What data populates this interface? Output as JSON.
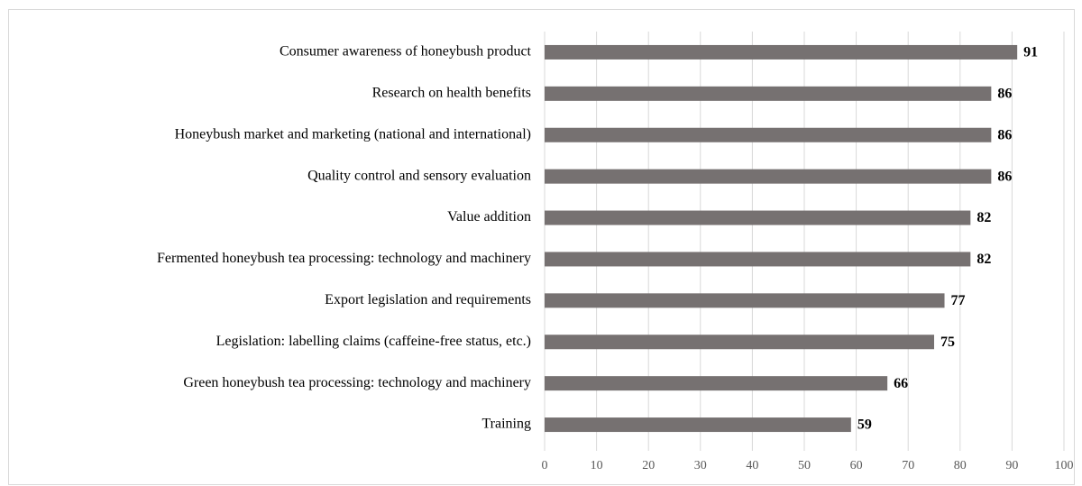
{
  "chart_data": {
    "type": "bar",
    "orientation": "horizontal",
    "categories": [
      "Consumer awareness of honeybush product",
      "Research on health benefits",
      "Honeybush market and marketing (national and international)",
      "Quality control and sensory evaluation",
      "Value addition",
      "Fermented honeybush tea processing: technology and machinery",
      "Export legislation and requirements",
      "Legislation: labelling claims (caffeine-free status, etc.)",
      "Green honeybush tea processing: technology and machinery",
      "Training"
    ],
    "values": [
      91,
      86,
      86,
      86,
      82,
      82,
      77,
      75,
      66,
      59
    ],
    "color": "#767171",
    "xlim": [
      0,
      100
    ],
    "xticks": [
      0,
      10,
      20,
      30,
      40,
      50,
      60,
      70,
      80,
      90,
      100
    ],
    "grid": true
  }
}
